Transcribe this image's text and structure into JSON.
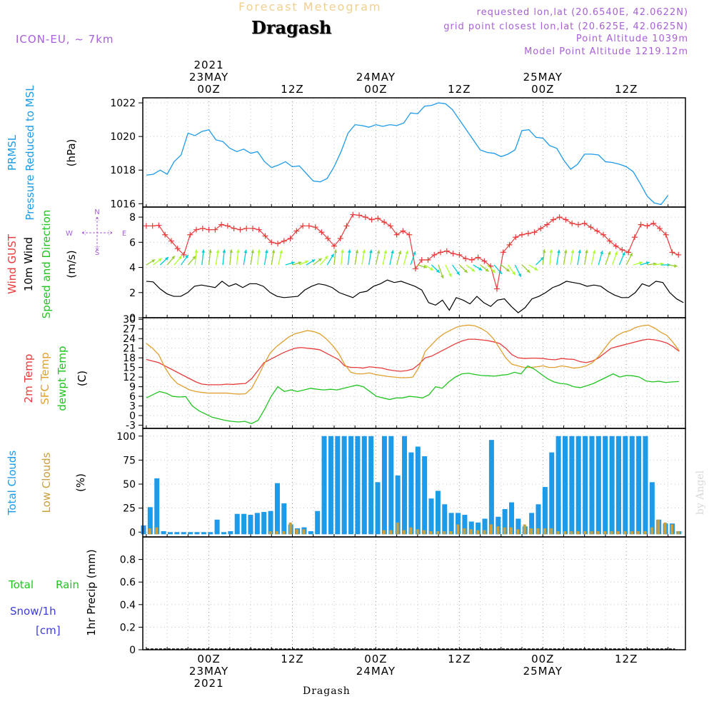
{
  "header": {
    "title": "Forecast Meteogram",
    "location": "Dragash",
    "model": "ICON-EU, ~ 7km",
    "requested": "requested lon,lat (20.6540E, 42.0622N)",
    "grid_point": "grid point closest lon,lat (20.625E, 42.0625N)",
    "point_alt": "Point Altitude 1039m",
    "model_alt": "Model Point Altitude 1219.12m",
    "watermark": "by Angel",
    "footer_location": "Dragash"
  },
  "colors": {
    "pressure": "#1e9be8",
    "gust": "#e83c3c",
    "wind": "#000000",
    "temp2m": "#e83c3c",
    "sfc": "#e0a030",
    "dewpt": "#22c422",
    "total_clouds": "#1e9be8",
    "low_clouds": "#c8a040",
    "rain": "#22c422",
    "snow": "#3c3cdc",
    "meta": "#a860d8"
  },
  "time_axis": {
    "top": [
      {
        "t": 0,
        "lines": [
          "2021",
          "23MAY",
          "00Z"
        ]
      },
      {
        "t": 12,
        "lines": [
          "12Z"
        ]
      },
      {
        "t": 24,
        "lines": [
          "24MAY",
          "00Z"
        ]
      },
      {
        "t": 36,
        "lines": [
          "12Z"
        ]
      },
      {
        "t": 48,
        "lines": [
          "25MAY",
          "00Z"
        ]
      },
      {
        "t": 60,
        "lines": [
          "12Z"
        ]
      }
    ],
    "bottom": [
      {
        "t": 0,
        "lines": [
          "00Z",
          "23MAY",
          "2021"
        ]
      },
      {
        "t": 12,
        "lines": [
          "12Z"
        ]
      },
      {
        "t": 24,
        "lines": [
          "00Z",
          "24MAY"
        ]
      },
      {
        "t": 36,
        "lines": [
          "12Z"
        ]
      },
      {
        "t": 48,
        "lines": [
          "00Z",
          "25MAY"
        ]
      },
      {
        "t": 60,
        "lines": [
          "12Z"
        ]
      }
    ]
  },
  "chart_data": [
    {
      "type": "line",
      "ylabel": [
        "PRMSL",
        "Pressure Reduced to MSL",
        "(hPa)"
      ],
      "ylim": [
        1015.8,
        1022.3
      ],
      "yticks": [
        "1016",
        "1018",
        "1020",
        "1022"
      ],
      "ytick_values": [
        1016,
        1018,
        1020,
        1022
      ],
      "series": [
        {
          "values": [
            1017.7,
            1017.75,
            1018,
            1017.75,
            1018.5,
            1018.9,
            1020.2,
            1020.05,
            1020.3,
            1020.4,
            1019.8,
            1019.7,
            1019.3,
            1019.1,
            1019.25,
            1019,
            1019.1,
            1018.5,
            1018.15,
            1018.3,
            1018.5,
            1018.2,
            1018.25,
            1017.8,
            1017.35,
            1017.3,
            1017.5,
            1018.2,
            1019.1,
            1020.2,
            1020.7,
            1020.65,
            1020.55,
            1020.7,
            1020.6,
            1020.7,
            1020.65,
            1020.8,
            1021.4,
            1021.35,
            1021.8,
            1021.85,
            1022,
            1021.95,
            1021.6,
            1021,
            1020.4,
            1019.8,
            1019.2,
            1019.05,
            1019,
            1018.8,
            1018.95,
            1019.2,
            1020.35,
            1020.4,
            1019.95,
            1019.9,
            1019.45,
            1019.3,
            1018.6,
            1018.05,
            1018.35,
            1018.95,
            1018.95,
            1018.9,
            1018.5,
            1018.45,
            1018.35,
            1018.2,
            1017.9,
            1017.2,
            1016.45,
            1016.05,
            1015.95,
            1016.5
          ]
        }
      ]
    },
    {
      "type": "line",
      "ylabel": [
        "Wind GUST",
        "10m Wind",
        "Speed and Direction",
        "(m/s)"
      ],
      "compass": [
        "N",
        "W",
        "E",
        "S"
      ],
      "ylim": [
        0,
        8.8
      ],
      "yticks": [
        "0",
        "2",
        "4",
        "6",
        "8"
      ],
      "ytick_values": [
        0,
        2,
        4,
        6,
        8
      ],
      "series": [
        {
          "name": "Wind GUST",
          "values": [
            7.3,
            7.3,
            7.35,
            6.6,
            6.1,
            5.5,
            5.0,
            6.6,
            7.0,
            7.1,
            7.0,
            7.0,
            7.4,
            7.3,
            7.1,
            7.0,
            7.1,
            7.1,
            7.0,
            6.5,
            6.0,
            5.9,
            6.1,
            6.3,
            6.9,
            7.3,
            7.3,
            7.2,
            6.8,
            6.3,
            5.7,
            6.3,
            7.3,
            8.2,
            8.15,
            8.0,
            7.8,
            7.9,
            7.6,
            7.3,
            6.6,
            6.9,
            6.6,
            3.9,
            4.6,
            4.6,
            5.0,
            5.2,
            5.3,
            5.1,
            5.0,
            4.7,
            4.6,
            4.8,
            4.5,
            4.1,
            2.3,
            5.2,
            5.8,
            6.4,
            6.6,
            6.7,
            6.8,
            7.1,
            7.4,
            7.8,
            8.0,
            7.8,
            7.5,
            7.4,
            7.5,
            7.2,
            6.9,
            6.6,
            6.1,
            5.7,
            5.4,
            5.2,
            6.4,
            7.4,
            7.3,
            7.5,
            7.1,
            6.6,
            5.2,
            5.0
          ]
        },
        {
          "name": "10m Wind",
          "values": [
            2.9,
            2.85,
            2.3,
            1.9,
            1.7,
            1.7,
            2.0,
            2.5,
            2.6,
            2.5,
            2.4,
            2.9,
            2.5,
            2.7,
            2.4,
            2.7,
            2.7,
            2.5,
            2.0,
            1.7,
            1.6,
            1.65,
            1.7,
            2.2,
            2.5,
            2.7,
            2.6,
            2.4,
            2.0,
            1.8,
            1.6,
            2.0,
            2.1,
            2.5,
            2.7,
            3.0,
            2.8,
            2.9,
            2.7,
            2.5,
            2.2,
            1.2,
            1.0,
            1.4,
            0.6,
            1.6,
            1.4,
            1.1,
            1.7,
            1.2,
            0.9,
            1.4,
            1.5,
            0.9,
            0.4,
            0.8,
            1.5,
            1.7,
            2.0,
            2.4,
            2.6,
            2.9,
            2.8,
            2.7,
            2.5,
            2.6,
            2.5,
            2.1,
            1.8,
            1.6,
            1.6,
            2.0,
            2.7,
            2.5,
            2.9,
            2.8,
            2.0,
            1.5,
            1.2
          ]
        },
        {
          "name": "Wind direction (deg)",
          "values": [
            70,
            65,
            60,
            55,
            55,
            50,
            55,
            10,
            10,
            10,
            15,
            10,
            10,
            10,
            15,
            15,
            10,
            15,
            15,
            20,
            80,
            80,
            75,
            70,
            65,
            55,
            45,
            10,
            10,
            10,
            15,
            15,
            15,
            20,
            20,
            20,
            25,
            25,
            30,
            100,
            110,
            120,
            150,
            140,
            130,
            120,
            115,
            110,
            115,
            120,
            125,
            115,
            130,
            140,
            120,
            110,
            60,
            10,
            10,
            15,
            15,
            15,
            15,
            15,
            20,
            25,
            30,
            30,
            35,
            40,
            80,
            80,
            85,
            85,
            90,
            95
          ]
        }
      ]
    },
    {
      "type": "line",
      "ylabel": [
        "2m Temp",
        "SFC Temp",
        "dewpt Temp",
        "(C)"
      ],
      "ylim": [
        -4,
        30.5
      ],
      "yticks": [
        "-3",
        "0",
        "3",
        "6",
        "9",
        "12",
        "15",
        "18",
        "21",
        "24",
        "27",
        "30"
      ],
      "ytick_values": [
        -3,
        0,
        3,
        6,
        9,
        12,
        15,
        18,
        21,
        24,
        27,
        30
      ],
      "series": [
        {
          "name": "2m Temp",
          "values": [
            17.5,
            17,
            16.5,
            15.5,
            14.5,
            13.5,
            12.5,
            11.5,
            10.5,
            9.8,
            9.6,
            9.6,
            9.6,
            9.8,
            9.7,
            9.9,
            10,
            11.5,
            14,
            16.5,
            17.5,
            18.5,
            19.5,
            20.3,
            21,
            21.2,
            21,
            20.8,
            20.5,
            19.5,
            18.5,
            17.5,
            15.5,
            15,
            15,
            14.8,
            15.2,
            15,
            14.8,
            14.3,
            14,
            13.8,
            14,
            14.5,
            16,
            18,
            18.5,
            19.5,
            20.5,
            21.5,
            22.5,
            23.3,
            23.8,
            23.8,
            23.6,
            23.4,
            23,
            22.5,
            21,
            19,
            18,
            17.8,
            17.9,
            17.9,
            17.8,
            17.5,
            17.4,
            17.8,
            17.6,
            17.5,
            16.8,
            16.5,
            17,
            18,
            19.5,
            21,
            21.5,
            22,
            22.5,
            23,
            23.5,
            23.8,
            23.6,
            23.2,
            22.6,
            21.5,
            20
          ]
        },
        {
          "name": "SFC Temp",
          "values": [
            22.5,
            21,
            19,
            15,
            12,
            10,
            9,
            8,
            7.5,
            7.2,
            7,
            7,
            7,
            7,
            6.8,
            6.7,
            6.8,
            8.5,
            12,
            16,
            19.5,
            21.5,
            23,
            24.5,
            25.5,
            26,
            26.5,
            26.2,
            25.5,
            24,
            22,
            19.5,
            16,
            13.5,
            13,
            13,
            13.3,
            12.8,
            12.5,
            12.2,
            12,
            11.8,
            11.8,
            12,
            15,
            20,
            22,
            24,
            25.5,
            26.5,
            27.5,
            28,
            28.2,
            28,
            27.2,
            26,
            24,
            21,
            18,
            16,
            15.5,
            15,
            15,
            15.2,
            15.5,
            15,
            15,
            15.5,
            15.2,
            14.8,
            15,
            15.5,
            16.5,
            18.5,
            21,
            23.5,
            25,
            26,
            26.5,
            27.5,
            28,
            28.2,
            27.3,
            26,
            25,
            22.8,
            20.2
          ]
        },
        {
          "name": "dewpt Temp",
          "values": [
            5.5,
            6.5,
            7.5,
            7,
            6,
            5.8,
            5.9,
            3,
            1.5,
            0.5,
            -0.5,
            -1,
            -1.5,
            -1.8,
            -2,
            -1.8,
            -2.5,
            -1.5,
            2,
            6,
            9,
            7.5,
            8,
            7.5,
            8,
            8.5,
            8.2,
            8,
            8.2,
            8,
            8.5,
            9,
            9.5,
            9,
            7.5,
            6,
            5.5,
            5,
            5.5,
            5.5,
            6,
            5.8,
            5.5,
            6.5,
            9,
            8.5,
            10.5,
            12,
            13,
            13.2,
            12.8,
            12.5,
            12.4,
            12.3,
            12.6,
            12.8,
            13.5,
            13,
            15.5,
            14.5,
            13,
            11.5,
            10.5,
            10,
            9.8,
            9,
            8.7,
            9.3,
            10,
            11,
            12,
            13,
            12,
            12.5,
            12.4,
            12,
            10.8,
            10.5,
            10.7,
            10.3,
            10.5,
            10.6
          ]
        }
      ]
    },
    {
      "type": "bar",
      "ylabel": [
        "Total Clouds",
        "Low Clouds",
        "(%)"
      ],
      "ylim": [
        -5,
        108
      ],
      "yticks": [
        "0",
        "25",
        "50",
        "75",
        "100"
      ],
      "ytick_values": [
        0,
        25,
        50,
        75,
        100
      ],
      "series": [
        {
          "name": "Total Clouds",
          "values": [
            7,
            26,
            56,
            1,
            0,
            0,
            0,
            0,
            0,
            0,
            0,
            13,
            0,
            1,
            19,
            19,
            18,
            20,
            21,
            22,
            51,
            30,
            8,
            4,
            5,
            1,
            22,
            100,
            100,
            100,
            100,
            100,
            100,
            100,
            100,
            52,
            100,
            100,
            59,
            100,
            83,
            89,
            79,
            35,
            43,
            29,
            20,
            20,
            18,
            11,
            10,
            14,
            96,
            16,
            24,
            31,
            14,
            6,
            20,
            29,
            47,
            83,
            100,
            100,
            100,
            100,
            100,
            100,
            100,
            100,
            100,
            100,
            100,
            100,
            100,
            100,
            52,
            13,
            9,
            9,
            1
          ]
        },
        {
          "name": "Low Clouds",
          "values": [
            0,
            4,
            5,
            0,
            0,
            0,
            0,
            0,
            0,
            0,
            0,
            0,
            0,
            0,
            0,
            0,
            0,
            0,
            0,
            1,
            1,
            1,
            10,
            3,
            3,
            0,
            0,
            0,
            0,
            0,
            0,
            0,
            0,
            0,
            0,
            0,
            2,
            2,
            10,
            2,
            5,
            3,
            2,
            1,
            1,
            1,
            1,
            8,
            4,
            3,
            2,
            2,
            8,
            6,
            5,
            5,
            3,
            8,
            4,
            4,
            4,
            4,
            1,
            1,
            1,
            1,
            1,
            1,
            1,
            1,
            1,
            1,
            1,
            1,
            1,
            1,
            5,
            13,
            10,
            8,
            1
          ]
        }
      ]
    },
    {
      "type": "line",
      "ylabel": [
        "1hr Precip (mm)"
      ],
      "left_labels": {
        "total": "Total",
        "rain": "Rain",
        "snow": "Snow/1h",
        "cm": "[cm]"
      },
      "ylim": [
        0,
        1.0
      ],
      "yticks": [
        "0",
        "0.2",
        "0.4",
        "0.6",
        "0.8"
      ],
      "ytick_values": [
        0,
        0.2,
        0.4,
        0.6,
        0.8
      ],
      "series": [
        {
          "name": "Total Rain",
          "values": [
            0,
            0,
            0,
            0,
            0,
            0,
            0,
            0,
            0,
            0,
            0,
            0,
            0,
            0,
            0,
            0,
            0,
            0,
            0,
            0,
            0,
            0,
            0,
            0,
            0,
            0,
            0,
            0,
            0,
            0,
            0,
            0,
            0,
            0,
            0,
            0,
            0,
            0,
            0,
            0,
            0,
            0,
            0,
            0,
            0,
            0,
            0,
            0,
            0,
            0,
            0,
            0,
            0,
            0,
            0,
            0,
            0,
            0,
            0,
            0,
            0,
            0,
            0,
            0,
            0,
            0,
            0,
            0,
            0,
            0,
            0,
            0,
            0,
            0,
            0,
            0,
            0
          ]
        }
      ]
    }
  ]
}
